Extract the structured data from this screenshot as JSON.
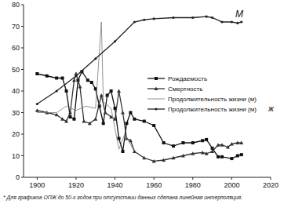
{
  "chart_data": {
    "type": "line",
    "xlim": [
      1893,
      2020
    ],
    "xticks": [
      1900,
      1920,
      1940,
      1960,
      1980,
      2000,
      2020
    ],
    "ylim": [
      0,
      80
    ],
    "yticks": [
      0,
      10,
      20,
      30,
      40,
      50,
      60,
      70,
      80
    ],
    "grid": false,
    "legend": "right",
    "annotations": [
      "М",
      "ж",
      "* Для графиков ОПЖ до 50-х годов при отсутствии данных сделана линейная интерполяция."
    ],
    "series": [
      {
        "name": "Рождаемость",
        "color": "#111111",
        "marker": "square",
        "line_style": "solid",
        "x": [
          1900,
          1905,
          1910,
          1913,
          1915,
          1917,
          1919,
          1921,
          1923,
          1926,
          1928,
          1930,
          1932,
          1934,
          1936,
          1938,
          1940,
          1942,
          1944,
          1946,
          1948,
          1950,
          1955,
          1960,
          1965,
          1970,
          1975,
          1980,
          1985,
          1987,
          1990,
          1993,
          1995,
          2000,
          2003,
          2005
        ],
        "values": [
          48,
          47,
          46,
          46,
          40,
          28,
          27,
          45,
          49,
          45,
          44,
          41,
          33,
          25,
          38,
          40,
          32,
          18,
          12,
          25,
          30,
          27,
          26,
          24,
          16,
          14.5,
          16,
          16,
          17,
          17.5,
          13.5,
          9.5,
          9.5,
          8.7,
          10,
          10.5
        ]
      },
      {
        "name": "Смертность",
        "color": "#333333",
        "marker": "triangle",
        "line_style": "solid",
        "x": [
          1900,
          1905,
          1910,
          1913,
          1915,
          1917,
          1919,
          1920,
          1922,
          1924,
          1927,
          1930,
          1933,
          1935,
          1938,
          1940,
          1942,
          1944,
          1946,
          1948,
          1950,
          1955,
          1960,
          1965,
          1970,
          1975,
          1980,
          1985,
          1987,
          1990,
          1993,
          1995,
          1998,
          2000,
          2003,
          2005
        ],
        "values": [
          31,
          30,
          29,
          27,
          26,
          30,
          45,
          48,
          42,
          26,
          25,
          27,
          38,
          30,
          28,
          27,
          40,
          30,
          18,
          17,
          12,
          9,
          7.5,
          8,
          9,
          10,
          11,
          11.5,
          11,
          12,
          15,
          15,
          14,
          15.5,
          16,
          16
        ]
      },
      {
        "name": "Продолжительность жизни (м)",
        "color": "#777777",
        "marker": "none",
        "line_style": "solid",
        "x": [
          1900,
          1910,
          1915,
          1920,
          1925,
          1930,
          1933,
          1934,
          1938,
          1942,
          1945,
          1950
        ],
        "values": [
          30,
          30,
          33,
          31,
          33,
          32,
          72,
          35,
          32,
          13,
          20,
          12
        ]
      },
      {
        "name": "Продолжительность жизни (м)",
        "color": "#222222",
        "marker": "dot",
        "line_style": "solid",
        "x": [
          1900,
          1910,
          1920,
          1930,
          1940,
          1950,
          1955,
          1960,
          1970,
          1980,
          1987,
          1990,
          1995,
          2000,
          2003,
          2005
        ],
        "values": [
          34,
          40,
          47,
          55,
          63,
          72,
          73,
          73.5,
          74,
          74,
          74.5,
          74,
          72,
          72,
          71.5,
          72
        ]
      }
    ]
  }
}
